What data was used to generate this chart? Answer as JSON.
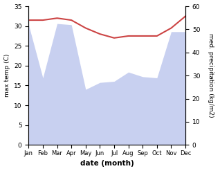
{
  "months": [
    "Jan",
    "Feb",
    "Mar",
    "Apr",
    "May",
    "Jun",
    "Jul",
    "Aug",
    "Sep",
    "Oct",
    "Nov",
    "Dec"
  ],
  "max_temp": [
    31.5,
    31.5,
    32.0,
    31.5,
    29.5,
    28.0,
    27.0,
    27.5,
    27.5,
    27.5,
    29.5,
    32.5
  ],
  "precipitation": [
    52.0,
    29.0,
    52.5,
    52.0,
    24.0,
    27.0,
    27.5,
    31.5,
    29.5,
    29.0,
    49.0,
    49.0
  ],
  "temp_color": "#cc4444",
  "precip_fill_color": "#c8d0f0",
  "temp_ylim": [
    0,
    35
  ],
  "precip_ylim": [
    0,
    60
  ],
  "xlabel": "date (month)",
  "ylabel_left": "max temp (C)",
  "ylabel_right": "med. precipitation (kg/m2)"
}
